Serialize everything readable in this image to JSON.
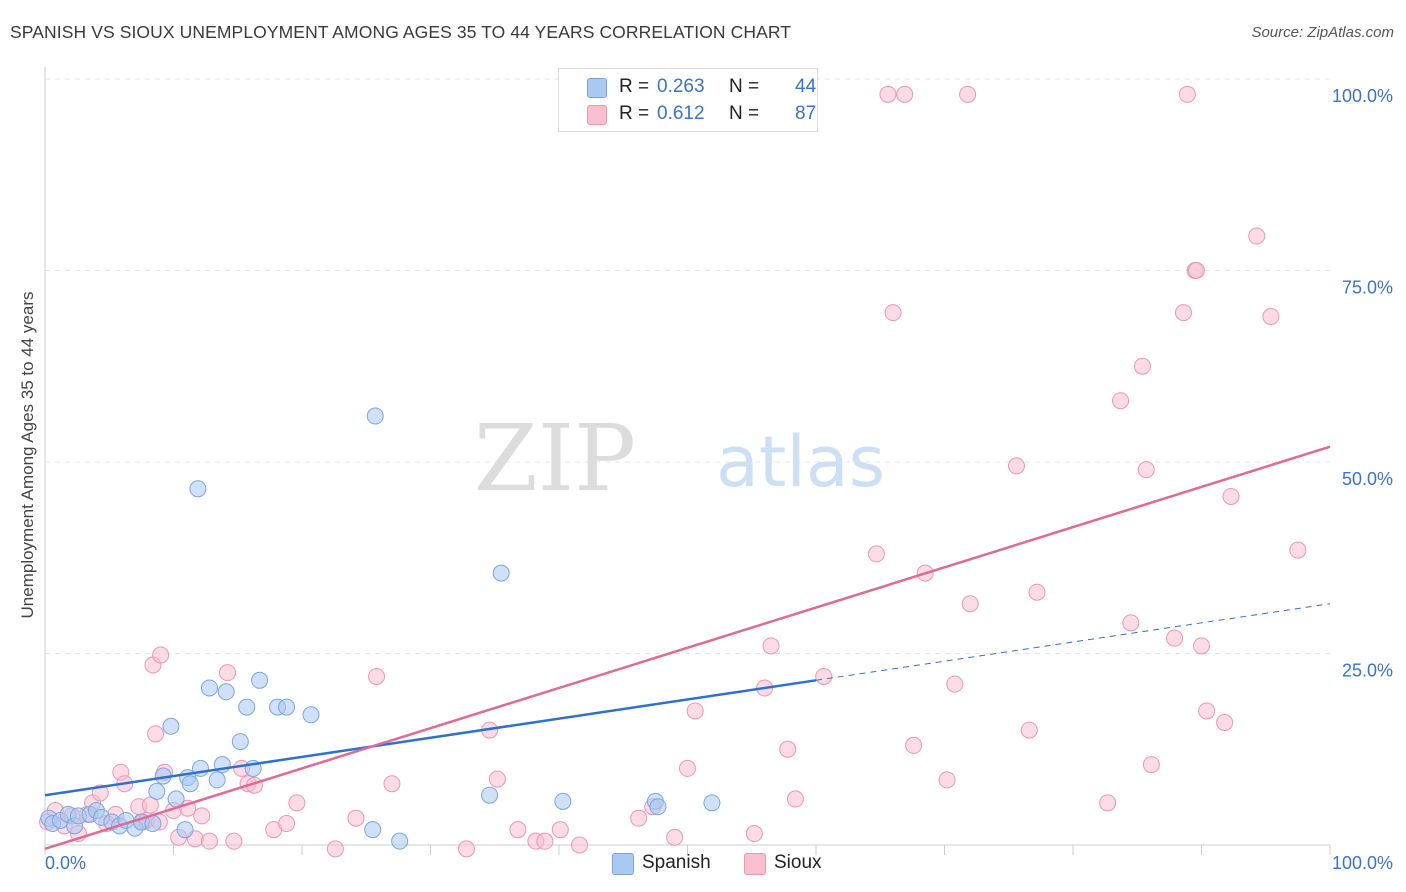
{
  "title": "SPANISH VS SIOUX UNEMPLOYMENT AMONG AGES 35 TO 44 YEARS CORRELATION CHART",
  "source": "Source: ZipAtlas.com",
  "watermark": {
    "zip": "ZIP",
    "atlas": "atlas"
  },
  "legend": {
    "rows": [
      {
        "r_label": "R =",
        "r_value": "0.263",
        "n_label": "N =",
        "n_value": "44",
        "color": "#a9c9f0",
        "border": "#7aa6dd"
      },
      {
        "r_label": "R =",
        "r_value": "0.612",
        "n_label": "N =",
        "n_value": "87",
        "color": "#f8bfd1",
        "border": "#ee95b2"
      }
    ]
  },
  "bottom_legend": [
    {
      "label": "Spanish",
      "color": "#a9c9f0",
      "border": "#7aa6dd"
    },
    {
      "label": "Sioux",
      "color": "#f8bfd1",
      "border": "#ee95b2"
    }
  ],
  "chart_data": {
    "type": "scatter",
    "title": "SPANISH VS SIOUX UNEMPLOYMENT AMONG AGES 35 TO 44 YEARS CORRELATION CHART",
    "xlabel": "",
    "ylabel": "Unemployment Among Ages 35 to 44 years",
    "xlim": [
      0,
      100
    ],
    "ylim": [
      0,
      100
    ],
    "x_tick_labels": [
      "0.0%",
      "100.0%"
    ],
    "y_tick_labels": [
      "100.0%",
      "75.0%",
      "50.0%",
      "25.0%"
    ],
    "y_ticks": [
      100,
      75,
      50,
      25
    ],
    "grid": true,
    "legend_position": "top-center",
    "series": [
      {
        "name": "Spanish",
        "color": "#a9c9f0",
        "stroke": "#7aa6dd",
        "line_color": "#2f6fce",
        "trend": {
          "x0": 0,
          "y0": 6.5,
          "x1": 60,
          "y1": 21.5,
          "dash_to_x": 100,
          "dash_to_y": 31.5
        },
        "points": [
          [
            0.3,
            3.5
          ],
          [
            0.6,
            2.8
          ],
          [
            1.2,
            3.2
          ],
          [
            1.8,
            4.0
          ],
          [
            2.3,
            2.5
          ],
          [
            2.6,
            3.8
          ],
          [
            3.5,
            4.0
          ],
          [
            4.0,
            4.5
          ],
          [
            4.4,
            3.6
          ],
          [
            5.2,
            3.0
          ],
          [
            5.8,
            2.5
          ],
          [
            6.3,
            3.2
          ],
          [
            7.0,
            2.2
          ],
          [
            7.5,
            3.0
          ],
          [
            8.4,
            2.8
          ],
          [
            8.7,
            7.0
          ],
          [
            9.2,
            9.0
          ],
          [
            9.8,
            15.5
          ],
          [
            10.2,
            6.0
          ],
          [
            10.9,
            2.0
          ],
          [
            11.1,
            8.8
          ],
          [
            11.3,
            8.0
          ],
          [
            11.9,
            46.5
          ],
          [
            12.1,
            10.0
          ],
          [
            12.8,
            20.5
          ],
          [
            13.4,
            8.5
          ],
          [
            13.8,
            10.5
          ],
          [
            14.1,
            20.0
          ],
          [
            15.2,
            13.5
          ],
          [
            15.7,
            18.0
          ],
          [
            16.2,
            10.0
          ],
          [
            16.7,
            21.5
          ],
          [
            18.1,
            18.0
          ],
          [
            18.8,
            18.0
          ],
          [
            20.7,
            17.0
          ],
          [
            25.5,
            2.0
          ],
          [
            25.7,
            56.0
          ],
          [
            27.6,
            0.5
          ],
          [
            34.6,
            6.5
          ],
          [
            35.5,
            35.5
          ],
          [
            40.3,
            5.7
          ],
          [
            47.5,
            5.7
          ],
          [
            47.7,
            5.0
          ],
          [
            51.9,
            5.5
          ]
        ]
      },
      {
        "name": "Sioux",
        "color": "#f8bfd1",
        "stroke": "#ee95b2",
        "line_color": "#e06a94",
        "trend": {
          "x0": 0,
          "y0": -0.5,
          "x1": 100,
          "y1": 52.0
        },
        "points": [
          [
            0.2,
            3.0
          ],
          [
            0.8,
            4.5
          ],
          [
            1.5,
            2.5
          ],
          [
            2.1,
            3.8
          ],
          [
            2.6,
            1.5
          ],
          [
            3.3,
            4.0
          ],
          [
            3.7,
            5.5
          ],
          [
            4.3,
            6.8
          ],
          [
            4.8,
            2.8
          ],
          [
            5.5,
            4.0
          ],
          [
            5.9,
            9.5
          ],
          [
            6.2,
            8.0
          ],
          [
            7.3,
            5.0
          ],
          [
            7.6,
            3.0
          ],
          [
            7.9,
            3.2
          ],
          [
            8.2,
            5.2
          ],
          [
            8.4,
            23.5
          ],
          [
            8.6,
            14.5
          ],
          [
            8.9,
            3.0
          ],
          [
            9.0,
            24.8
          ],
          [
            9.3,
            9.5
          ],
          [
            10.0,
            4.5
          ],
          [
            10.4,
            1.0
          ],
          [
            11.1,
            4.8
          ],
          [
            11.7,
            0.8
          ],
          [
            12.2,
            3.8
          ],
          [
            12.8,
            0.5
          ],
          [
            14.2,
            22.5
          ],
          [
            14.7,
            0.5
          ],
          [
            15.3,
            10.0
          ],
          [
            15.8,
            8.0
          ],
          [
            16.3,
            7.8
          ],
          [
            17.8,
            2.0
          ],
          [
            18.8,
            2.8
          ],
          [
            19.6,
            5.5
          ],
          [
            22.6,
            -0.5
          ],
          [
            24.2,
            3.5
          ],
          [
            25.8,
            22.0
          ],
          [
            27.0,
            8.0
          ],
          [
            32.8,
            -0.5
          ],
          [
            34.6,
            15.0
          ],
          [
            35.2,
            8.6
          ],
          [
            36.8,
            2.0
          ],
          [
            38.2,
            0.5
          ],
          [
            38.9,
            0.5
          ],
          [
            40.1,
            2.0
          ],
          [
            41.6,
            0.0
          ],
          [
            46.2,
            3.5
          ],
          [
            47.3,
            5.0
          ],
          [
            49.0,
            1.0
          ],
          [
            50.0,
            10.0
          ],
          [
            50.6,
            17.5
          ],
          [
            55.2,
            1.5
          ],
          [
            56.0,
            20.5
          ],
          [
            56.5,
            26.0
          ],
          [
            57.8,
            12.5
          ],
          [
            58.4,
            6.0
          ],
          [
            60.6,
            22.0
          ],
          [
            64.7,
            38.0
          ],
          [
            65.6,
            98.0
          ],
          [
            66.0,
            69.5
          ],
          [
            66.9,
            98.0
          ],
          [
            67.6,
            13.0
          ],
          [
            68.5,
            35.5
          ],
          [
            70.2,
            8.5
          ],
          [
            70.8,
            21.0
          ],
          [
            71.8,
            98.0
          ],
          [
            72.0,
            31.5
          ],
          [
            75.6,
            49.5
          ],
          [
            76.6,
            15.0
          ],
          [
            77.2,
            33.0
          ],
          [
            82.7,
            5.5
          ],
          [
            83.7,
            58.0
          ],
          [
            84.5,
            29.0
          ],
          [
            85.4,
            62.5
          ],
          [
            85.7,
            49.0
          ],
          [
            86.1,
            10.5
          ],
          [
            87.9,
            27.0
          ],
          [
            88.6,
            69.5
          ],
          [
            88.9,
            98.0
          ],
          [
            89.5,
            75.0
          ],
          [
            89.6,
            75.0
          ],
          [
            90.0,
            26.0
          ],
          [
            90.4,
            17.5
          ],
          [
            91.8,
            16.0
          ],
          [
            92.3,
            45.5
          ],
          [
            94.3,
            79.5
          ],
          [
            95.4,
            69.0
          ],
          [
            97.5,
            38.5
          ]
        ]
      }
    ]
  }
}
